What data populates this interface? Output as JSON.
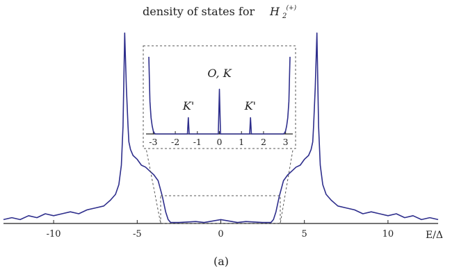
{
  "chart_data": {
    "type": "line",
    "title": {
      "prefix": "density of states for",
      "symbol": "H",
      "sub": "2",
      "sup": "(+)"
    },
    "xlabel": "E/Δ",
    "caption": "(a)",
    "main": {
      "xlim": [
        -13,
        13
      ],
      "x_ticks": [
        -10,
        -5,
        0,
        5,
        10
      ],
      "tick_labels": [
        "-10",
        "-5",
        "0",
        "5",
        "10"
      ],
      "series": [
        {
          "color": "#2e2e8c",
          "x": [
            -13.0,
            -12.5,
            -12.0,
            -11.5,
            -11.0,
            -10.5,
            -10.0,
            -9.5,
            -9.0,
            -8.5,
            -8.0,
            -7.5,
            -7.0,
            -6.6,
            -6.3,
            -6.1,
            -5.95,
            -5.85,
            -5.75,
            -5.65,
            -5.55,
            -5.5,
            -5.4,
            -5.25,
            -5.0,
            -4.75,
            -4.5,
            -4.25,
            -4.0,
            -3.75,
            -3.5,
            -3.3,
            -3.15,
            -3.05,
            -3.0,
            -2.5,
            -1.5,
            -1.0,
            0.0,
            1.0,
            1.5,
            2.5,
            3.0,
            3.05,
            3.15,
            3.3,
            3.5,
            3.75,
            4.0,
            4.25,
            4.5,
            4.75,
            5.0,
            5.25,
            5.4,
            5.5,
            5.55,
            5.65,
            5.75,
            5.85,
            5.95,
            6.1,
            6.3,
            6.6,
            7.0,
            7.5,
            8.0,
            8.5,
            9.0,
            9.5,
            10.0,
            10.5,
            11.0,
            11.5,
            12.0,
            12.5,
            13.0
          ],
          "y": [
            0.02,
            0.03,
            0.02,
            0.04,
            0.03,
            0.05,
            0.04,
            0.05,
            0.06,
            0.05,
            0.07,
            0.08,
            0.09,
            0.12,
            0.15,
            0.2,
            0.3,
            0.5,
            0.98,
            0.7,
            0.5,
            0.42,
            0.38,
            0.35,
            0.33,
            0.3,
            0.29,
            0.27,
            0.25,
            0.22,
            0.14,
            0.06,
            0.02,
            0.01,
            0.005,
            0.005,
            0.01,
            0.005,
            0.02,
            0.005,
            0.01,
            0.005,
            0.005,
            0.01,
            0.02,
            0.06,
            0.14,
            0.22,
            0.25,
            0.27,
            0.29,
            0.3,
            0.33,
            0.35,
            0.38,
            0.42,
            0.5,
            0.7,
            0.98,
            0.5,
            0.3,
            0.2,
            0.15,
            0.12,
            0.09,
            0.08,
            0.07,
            0.05,
            0.06,
            0.05,
            0.04,
            0.05,
            0.03,
            0.04,
            0.02,
            0.03,
            0.02
          ]
        }
      ]
    },
    "inset": {
      "xlim": [
        -3.2,
        3.2
      ],
      "x_ticks": [
        -3,
        -2,
        -1,
        0,
        1,
        2,
        3
      ],
      "tick_labels": [
        "-3",
        "-2",
        "-1",
        "0",
        "1",
        "2",
        "3"
      ],
      "series": [
        {
          "color": "#2e2e8c",
          "x": [
            -3.2,
            -3.15,
            -3.1,
            -3.05,
            -3.0,
            -2.95,
            -2.9,
            -1.5,
            -1.45,
            -1.41,
            -1.37,
            -1.33,
            -1.2,
            -0.1,
            -0.05,
            0.0,
            0.05,
            0.1,
            1.2,
            1.33,
            1.37,
            1.41,
            1.45,
            1.5,
            2.9,
            2.95,
            3.0,
            3.05,
            3.1,
            3.15,
            3.2
          ],
          "y": [
            0.95,
            0.4,
            0.2,
            0.1,
            0.04,
            0.01,
            0.0,
            0.0,
            0.0,
            0.2,
            0.0,
            0.0,
            0.0,
            0.0,
            0.0,
            0.55,
            0.0,
            0.0,
            0.0,
            0.0,
            0.0,
            0.2,
            0.0,
            0.0,
            0.0,
            0.01,
            0.04,
            0.1,
            0.2,
            0.4,
            0.95
          ]
        }
      ],
      "annotations": [
        {
          "text": "K'",
          "x": -1.4,
          "y": 0.3
        },
        {
          "text": "O, K",
          "x": 0.0,
          "y": 0.7
        },
        {
          "text": "K'",
          "x": 1.4,
          "y": 0.3
        }
      ]
    }
  }
}
